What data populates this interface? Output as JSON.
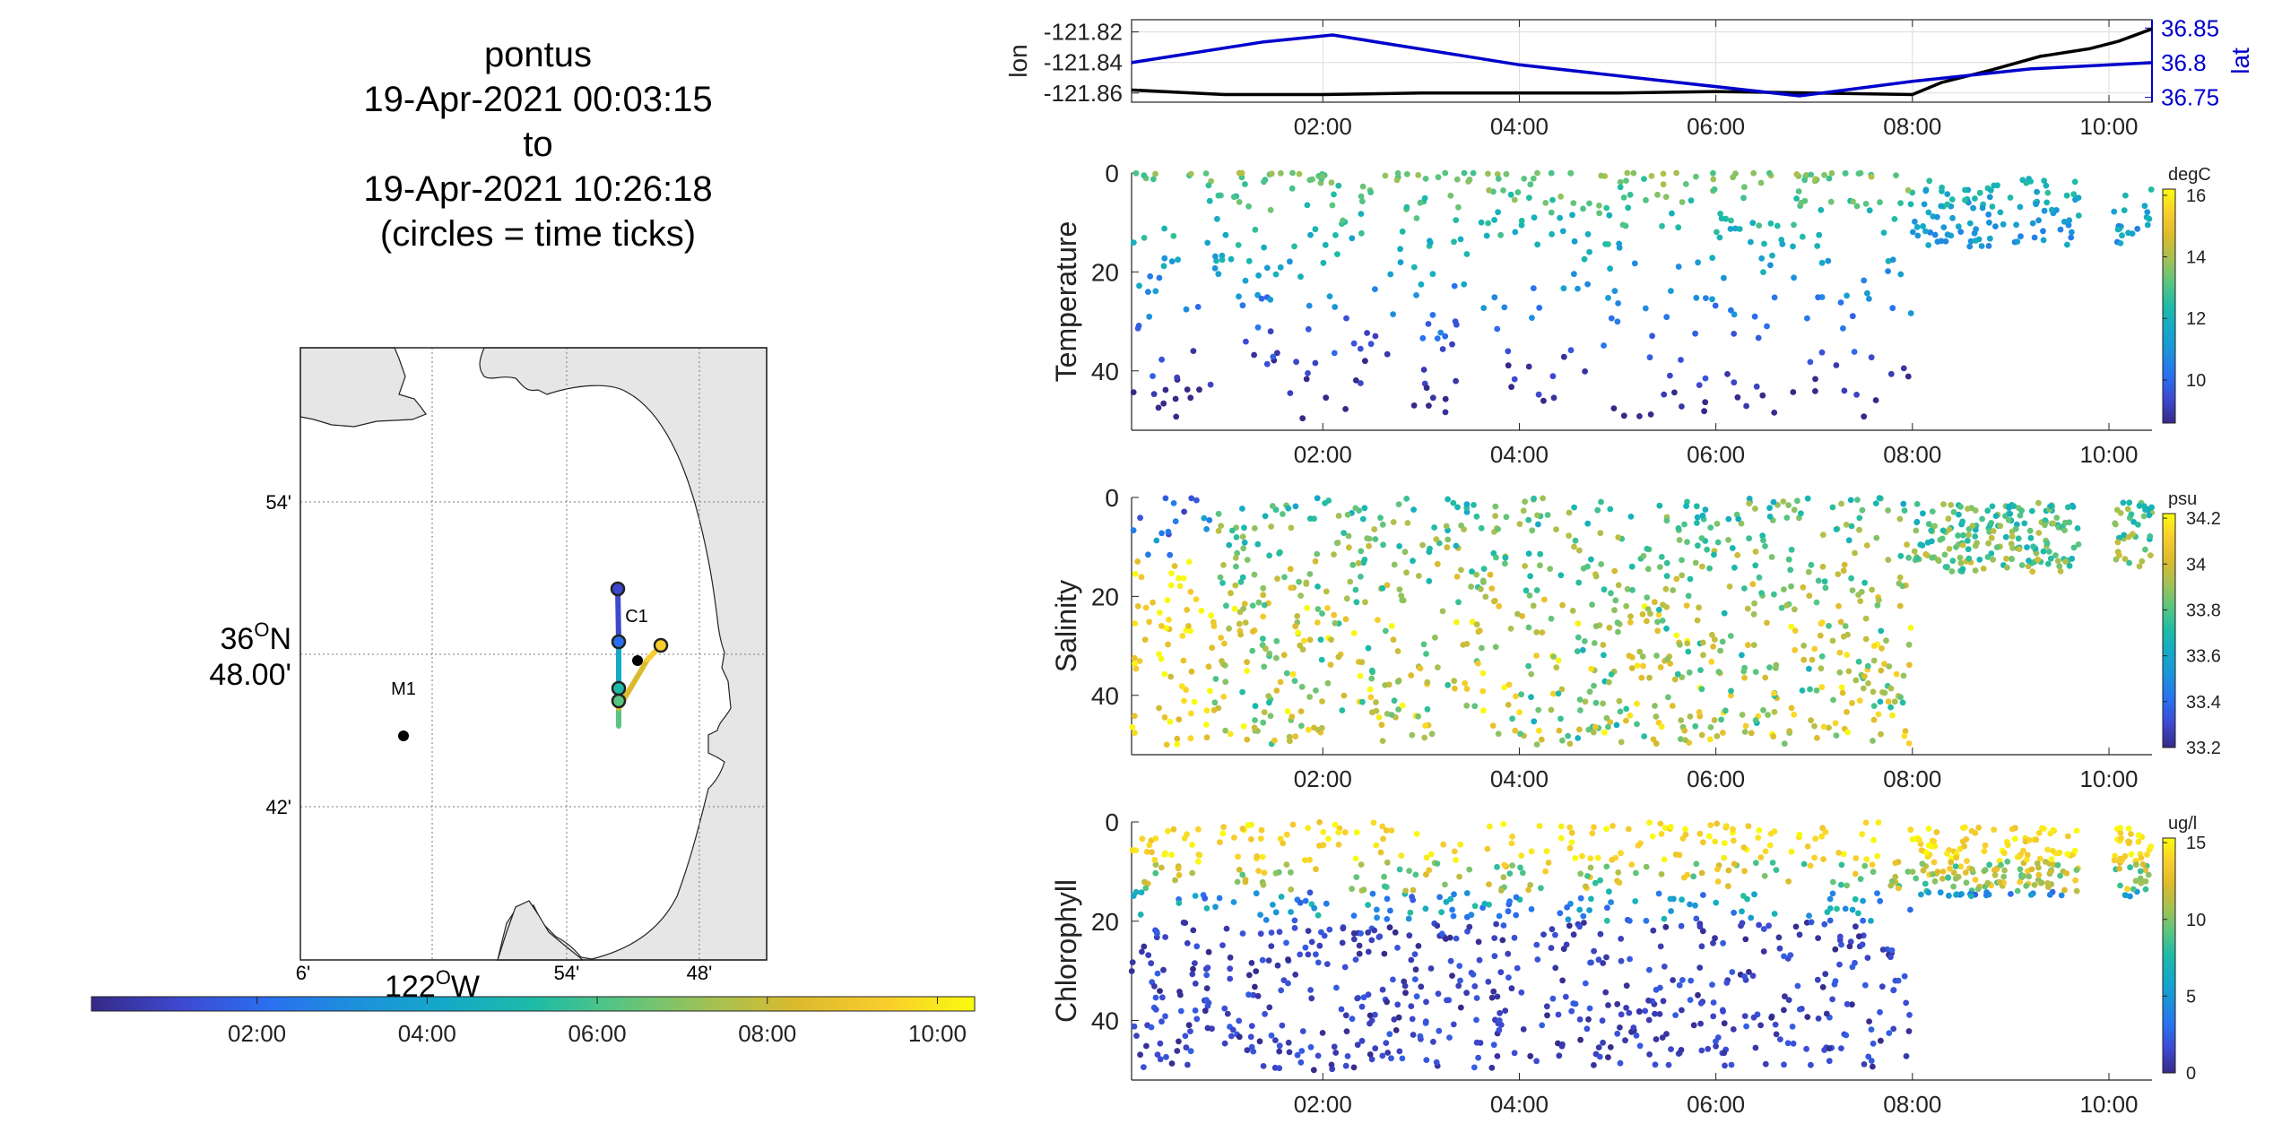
{
  "header": {
    "title_lines": [
      "pontus",
      "19-Apr-2021 00:03:15",
      "to",
      "19-Apr-2021 10:26:18",
      "(circles = time ticks)"
    ]
  },
  "map": {
    "lat_ticks": [
      "54'",
      "36",
      "O",
      "N",
      "48.00'",
      "42'"
    ],
    "lon_ticks": [
      "6'",
      "54'",
      "48'"
    ],
    "lon_main": [
      "122",
      "O",
      "W"
    ],
    "stations": [
      {
        "name": "M1"
      },
      {
        "name": "C1"
      }
    ],
    "colors": {
      "land": "#e6e6e6",
      "water": "#ffffff",
      "grid": "#7a7a7a"
    }
  },
  "time_colorbar": {
    "ticks": [
      "02:00",
      "04:00",
      "06:00",
      "08:00",
      "10:00"
    ]
  },
  "time_axis": {
    "start_hours": 0.054,
    "end_hours": 10.438,
    "tick_hours": [
      2,
      4,
      6,
      8,
      10
    ],
    "tick_labels": [
      "02:00",
      "04:00",
      "06:00",
      "08:00",
      "10:00"
    ]
  },
  "chart_data": [
    {
      "type": "line",
      "ylabel": "lon",
      "ylabel_right": "lat",
      "y_ticks_left": [
        "-121.82",
        "-121.84",
        "-121.86"
      ],
      "y_ticks_right": [
        "36.85",
        "36.8",
        "36.75"
      ],
      "ylim_left": [
        -121.866,
        -121.812
      ],
      "ylim_right": [
        36.743,
        36.862
      ],
      "grid": true,
      "series": [
        {
          "name": "lon",
          "color": "#000000",
          "x": [
            0.05,
            1.0,
            2.0,
            3.0,
            4.0,
            5.0,
            6.0,
            7.0,
            8.0,
            8.3,
            8.8,
            9.3,
            9.8,
            10.1,
            10.44
          ],
          "y": [
            -121.858,
            -121.861,
            -121.861,
            -121.86,
            -121.86,
            -121.86,
            -121.859,
            -121.86,
            -121.861,
            -121.853,
            -121.845,
            -121.836,
            -121.831,
            -121.826,
            -121.818
          ]
        },
        {
          "name": "lat",
          "color": "#0000cc",
          "x": [
            0.05,
            1.4,
            2.1,
            4.0,
            6.85,
            8.0,
            9.2,
            10.44
          ],
          "y": [
            36.8,
            36.83,
            36.84,
            36.797,
            36.752,
            36.773,
            36.791,
            36.8
          ]
        }
      ]
    },
    {
      "type": "scatter",
      "ylabel": "Temperature",
      "unit": "degC",
      "ylim": [
        0,
        52
      ],
      "y_ticks": [
        "0",
        "20",
        "40"
      ],
      "y_tick_values": [
        0,
        20,
        40
      ],
      "clim": [
        8.6,
        16.2
      ],
      "cbar_ticks": [
        "16",
        "14",
        "12",
        "10"
      ],
      "cbar_tick_values": [
        16,
        14,
        12,
        10
      ],
      "note": ""
    },
    {
      "type": "scatter",
      "ylabel": "Salinity",
      "unit": "psu",
      "ylim": [
        0,
        52
      ],
      "y_ticks": [
        "0",
        "20",
        "40"
      ],
      "y_tick_values": [
        0,
        20,
        40
      ],
      "clim": [
        33.2,
        34.22
      ],
      "cbar_ticks": [
        "34.2",
        "34",
        "33.8",
        "33.6",
        "33.4",
        "33.2"
      ],
      "cbar_tick_values": [
        34.2,
        34.0,
        33.8,
        33.6,
        33.4,
        33.2
      ]
    },
    {
      "type": "scatter",
      "ylabel": "Chlorophyll",
      "unit": "ug/l",
      "ylim": [
        0,
        52
      ],
      "y_ticks": [
        "0",
        "20",
        "40"
      ],
      "y_tick_values": [
        0,
        20,
        40
      ],
      "clim": [
        0,
        15.3
      ],
      "cbar_ticks": [
        "15",
        "10",
        "5",
        "0"
      ],
      "cbar_tick_values": [
        15,
        10,
        5,
        0
      ]
    }
  ],
  "palette_parula": [
    "#352a87",
    "#3e48cf",
    "#2a6ff0",
    "#1d90dc",
    "#14a9c8",
    "#1dbba7",
    "#5ac580",
    "#a2c154",
    "#dcba2d",
    "#f9cd2d",
    "#f9fb0e"
  ]
}
